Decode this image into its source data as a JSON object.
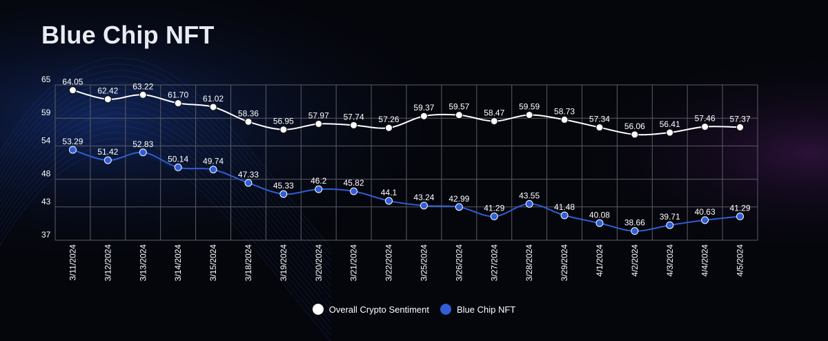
{
  "title": "Blue Chip NFT",
  "colors": {
    "background": "#05060c",
    "series_white": "#ffffff",
    "series_blue": "#2f5ed6",
    "grid": "#5b5d66"
  },
  "chart_data": {
    "type": "line",
    "title": "Blue Chip NFT",
    "xlabel": "",
    "ylabel": "",
    "ylim": [
      37,
      65
    ],
    "y_ticks": [
      65,
      59,
      54,
      48,
      43,
      37
    ],
    "grid": true,
    "legend_position": "bottom",
    "categories": [
      "3/11/2024",
      "3/12/2024",
      "3/13/2024",
      "3/14/2024",
      "3/15/2024",
      "3/18/2024",
      "3/19/2024",
      "3/20/2024",
      "3/21/2024",
      "3/22/2024",
      "3/25/2024",
      "3/26/2024",
      "3/27/2024",
      "3/28/2024",
      "3/29/2024",
      "4/1/2024",
      "4/2/2024",
      "4/3/2024",
      "4/4/2024",
      "4/5/2024"
    ],
    "series": [
      {
        "name": "Overall Crypto Sentiment",
        "color": "#ffffff",
        "values": [
          64.05,
          62.42,
          63.22,
          61.7,
          61.02,
          58.36,
          56.95,
          57.97,
          57.74,
          57.26,
          59.37,
          59.57,
          58.47,
          59.59,
          58.73,
          57.34,
          56.06,
          56.41,
          57.46,
          57.37
        ],
        "labels": [
          "64.05",
          "62.42",
          "63.22",
          "61.70",
          "61.02",
          "58.36",
          "56.95",
          "57.97",
          "57.74",
          "57.26",
          "59.37",
          "59.57",
          "58.47",
          "59.59",
          "58.73",
          "57.34",
          "56.06",
          "56.41",
          "57.46",
          "57.37"
        ]
      },
      {
        "name": "Blue Chip NFT",
        "color": "#2f5ed6",
        "values": [
          53.29,
          51.42,
          52.83,
          50.14,
          49.74,
          47.33,
          45.33,
          46.2,
          45.82,
          44.1,
          43.24,
          42.99,
          41.29,
          43.55,
          41.48,
          40.08,
          38.66,
          39.71,
          40.63,
          41.29
        ],
        "labels": [
          "53.29",
          "51.42",
          "52.83",
          "50.14",
          "49.74",
          "47.33",
          "45.33",
          "46.2",
          "45.82",
          "44.1",
          "43.24",
          "42.99",
          "41.29",
          "43.55",
          "41.48",
          "40.08",
          "38.66",
          "39.71",
          "40.63",
          "41.29"
        ]
      }
    ]
  }
}
